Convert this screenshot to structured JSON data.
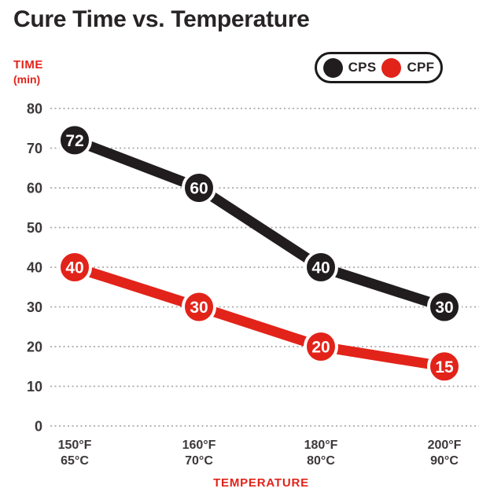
{
  "title": "Cure Time vs. Temperature",
  "y_axis": {
    "label_line1": "TIME",
    "label_line2": "(min)"
  },
  "x_axis": {
    "label": "TEMPERATURE"
  },
  "legend": [
    {
      "name": "CPS",
      "color": "#211d1e"
    },
    {
      "name": "CPF",
      "color": "#e2231a"
    }
  ],
  "chart_data": {
    "type": "line",
    "title": "Cure Time vs. Temperature",
    "xlabel": "TEMPERATURE",
    "ylabel": "TIME (min)",
    "categories": [
      [
        "150°F",
        "65°C"
      ],
      [
        "160°F",
        "70°C"
      ],
      [
        "180°F",
        "80°C"
      ],
      [
        "200°F",
        "90°C"
      ]
    ],
    "series": [
      {
        "name": "CPS",
        "color": "#211d1e",
        "values": [
          72,
          60,
          40,
          30
        ]
      },
      {
        "name": "CPF",
        "color": "#e2231a",
        "values": [
          40,
          30,
          20,
          15
        ]
      }
    ],
    "ylim": [
      0,
      80
    ],
    "ytick_step": 10,
    "grid": true,
    "grid_style": "dotted",
    "legend_position": "top-right",
    "data_labels": true
  },
  "colors": {
    "accent_red": "#e2231a",
    "ink": "#211d1e",
    "grid": "#a9a9a9",
    "tick_text": "#3c3839",
    "background": "#ffffff"
  }
}
